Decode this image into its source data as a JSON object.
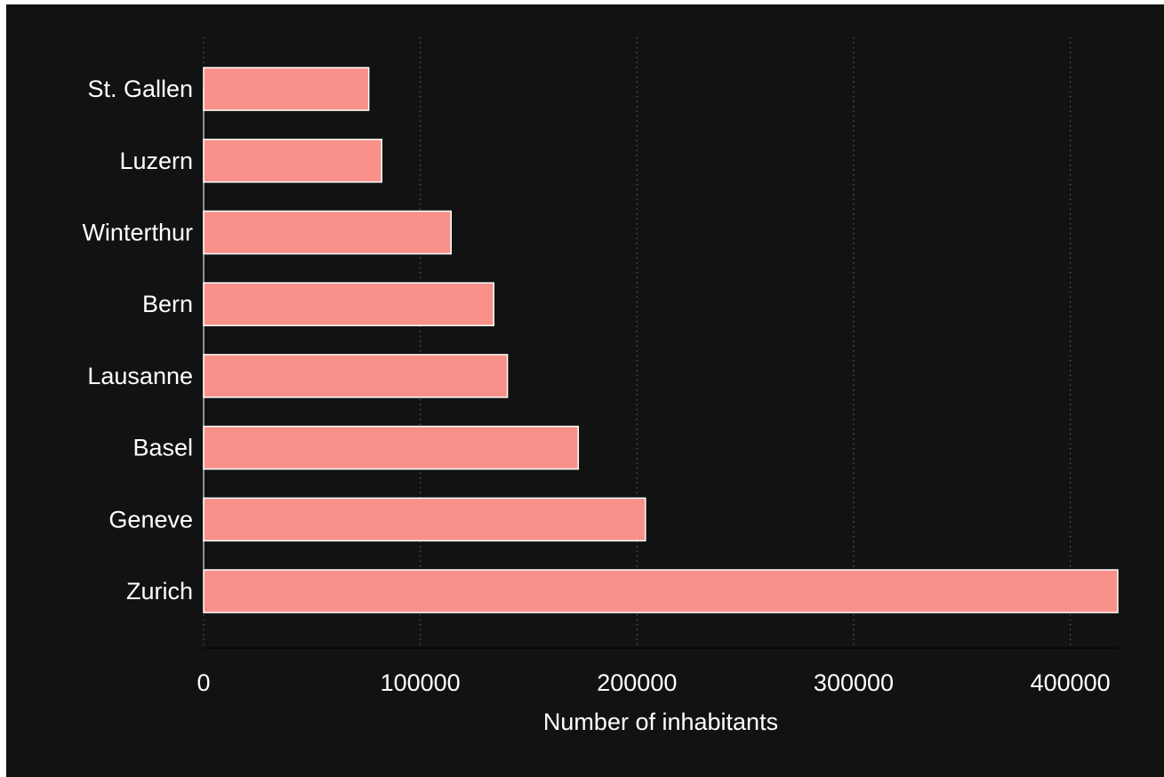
{
  "chart_data": {
    "type": "bar",
    "orientation": "horizontal",
    "categories": [
      "Zurich",
      "Geneve",
      "Basel",
      "Lausanne",
      "Bern",
      "Winterthur",
      "Luzern",
      "St. Gallen"
    ],
    "values": [
      421900,
      203900,
      172900,
      140200,
      133900,
      114200,
      82200,
      76200
    ],
    "xlabel": "Number of inhabitants",
    "ylabel": "",
    "title": "",
    "xlim": [
      0,
      421900
    ],
    "xticks": [
      "0",
      "100000",
      "200000",
      "300000",
      "400000"
    ],
    "xtick_values": [
      0,
      100000,
      200000,
      300000,
      400000
    ],
    "grid": "vertical dotted",
    "legend": "none"
  },
  "colors": {
    "background": "#121212",
    "bar_fill": "#f7918a",
    "bar_edge": "#ffffff",
    "grid": "#5a5a5a",
    "axis": "#b8b8b8",
    "text": "#ffffff"
  }
}
